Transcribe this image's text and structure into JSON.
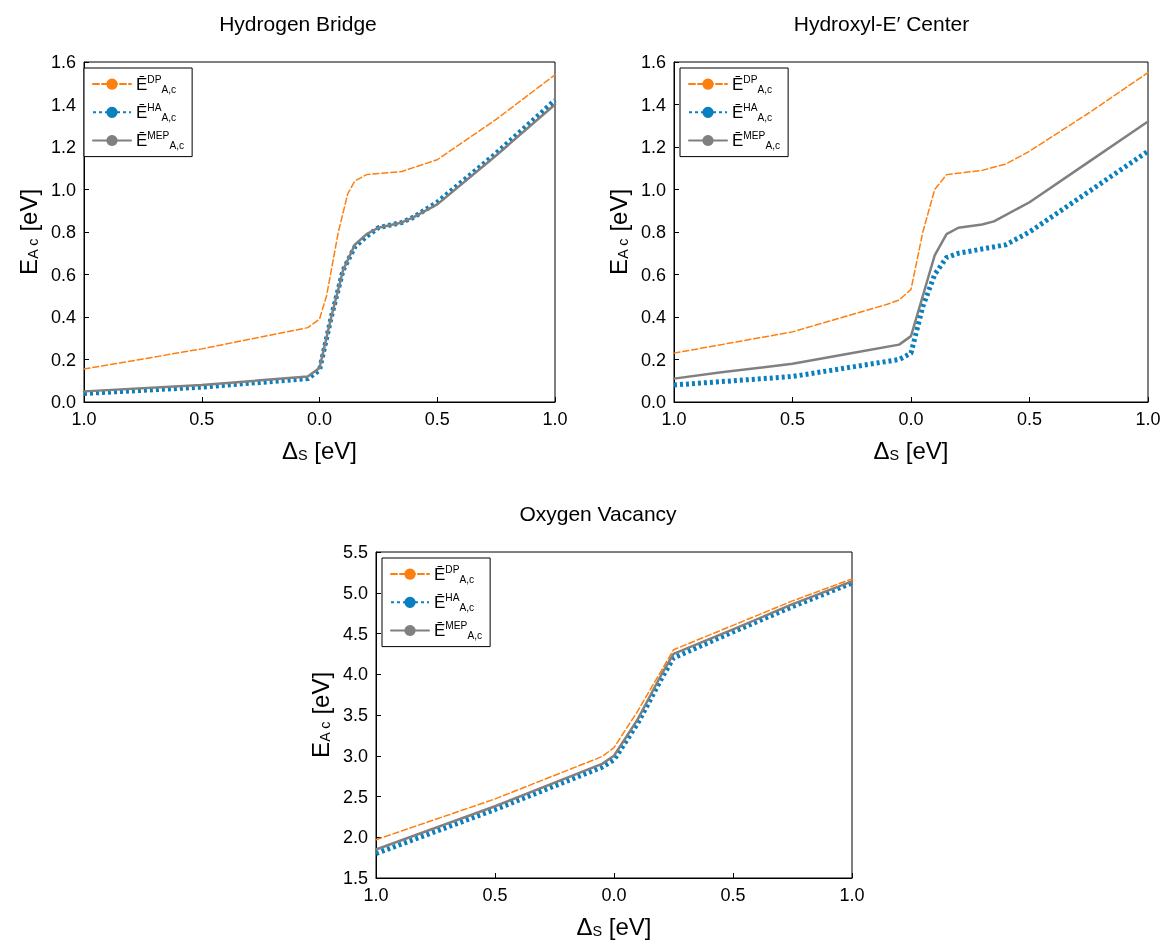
{
  "chart_data": [
    {
      "type": "line",
      "title": "Hydrogen Bridge",
      "xlabel": "Δ$_{S}$ [eV]",
      "ylabel": "E$_{A c}$ [eV]",
      "xlim": [
        -1,
        1
      ],
      "ylim": [
        0,
        1.6
      ],
      "xticks": [
        {
          "value": -1,
          "label": "1.0"
        },
        {
          "value": -0.5,
          "label": "0.5"
        },
        {
          "value": 0,
          "label": "0.0"
        },
        {
          "value": 0.5,
          "label": "0.5"
        },
        {
          "value": 1,
          "label": "1.0"
        }
      ],
      "yticks": [
        {
          "value": 0,
          "label": "0.0"
        },
        {
          "value": 0.2,
          "label": "0.2"
        },
        {
          "value": 0.4,
          "label": "0.4"
        },
        {
          "value": 0.6,
          "label": "0.6"
        },
        {
          "value": 0.8,
          "label": "0.8"
        },
        {
          "value": 1,
          "label": "1.0"
        },
        {
          "value": 1.2,
          "label": "1.2"
        },
        {
          "value": 1.4,
          "label": "1.4"
        },
        {
          "value": 1.6,
          "label": "1.6"
        }
      ],
      "grid": false,
      "legend": "top left",
      "series": [
        {
          "name": "Ē$^{DP}$$_{A,c}$",
          "color": "#ff7f0e",
          "line_style": "dashed",
          "x": [
            -1,
            -0.5,
            -0.05,
            0,
            0.03,
            0.08,
            0.12,
            0.15,
            0.2,
            0.3,
            0.35,
            0.5,
            0.75,
            1
          ],
          "values": [
            0.155,
            0.25,
            0.35,
            0.39,
            0.5,
            0.8,
            0.98,
            1.04,
            1.07,
            1.08,
            1.085,
            1.14,
            1.33,
            1.54
          ]
        },
        {
          "name": "Ē$^{HA}$$_{A,c}$",
          "color": "#0a7fc0",
          "line_style": "dotted",
          "x": [
            -1,
            -0.5,
            -0.05,
            0,
            0.05,
            0.1,
            0.15,
            0.2,
            0.25,
            0.35,
            0.4,
            0.5,
            0.75,
            1
          ],
          "values": [
            0.04,
            0.07,
            0.11,
            0.15,
            0.4,
            0.62,
            0.73,
            0.78,
            0.82,
            0.845,
            0.87,
            0.94,
            1.17,
            1.42
          ]
        },
        {
          "name": "Ē$^{MEP}$$_{A,c}$",
          "color": "#808080",
          "line_style": "solid",
          "x": [
            -1,
            -0.5,
            -0.05,
            0,
            0.05,
            0.1,
            0.15,
            0.2,
            0.25,
            0.35,
            0.4,
            0.5,
            0.75,
            1
          ],
          "values": [
            0.05,
            0.08,
            0.12,
            0.16,
            0.4,
            0.62,
            0.74,
            0.79,
            0.82,
            0.845,
            0.87,
            0.93,
            1.16,
            1.4
          ]
        }
      ]
    },
    {
      "type": "line",
      "title": "Hydroxyl-E′ Center",
      "xlabel": "Δ$_{S}$ [eV]",
      "ylabel": "E$_{A c}$ [eV]",
      "xlim": [
        -1,
        1
      ],
      "ylim": [
        0,
        1.6
      ],
      "xticks": [
        {
          "value": -1,
          "label": "1.0"
        },
        {
          "value": -0.5,
          "label": "0.5"
        },
        {
          "value": 0,
          "label": "0.0"
        },
        {
          "value": 0.5,
          "label": "0.5"
        },
        {
          "value": 1,
          "label": "1.0"
        }
      ],
      "yticks": [
        {
          "value": 0,
          "label": "0.0"
        },
        {
          "value": 0.2,
          "label": "0.2"
        },
        {
          "value": 0.4,
          "label": "0.4"
        },
        {
          "value": 0.6,
          "label": "0.6"
        },
        {
          "value": 0.8,
          "label": "0.8"
        },
        {
          "value": 1,
          "label": "1.0"
        },
        {
          "value": 1.2,
          "label": "1.2"
        },
        {
          "value": 1.4,
          "label": "1.4"
        },
        {
          "value": 1.6,
          "label": "1.6"
        }
      ],
      "grid": false,
      "legend": "top left",
      "series": [
        {
          "name": "Ē$^{DP}$$_{A,c}$",
          "color": "#ff7f0e",
          "line_style": "dashed",
          "x": [
            -1,
            -0.5,
            -0.1,
            -0.05,
            0,
            0.05,
            0.1,
            0.15,
            0.3,
            0.4,
            0.5,
            0.75,
            1
          ],
          "values": [
            0.23,
            0.33,
            0.46,
            0.48,
            0.53,
            0.8,
            1,
            1.07,
            1.09,
            1.12,
            1.18,
            1.36,
            1.55
          ]
        },
        {
          "name": "Ē$^{HA}$$_{A,c}$",
          "color": "#0a7fc0",
          "line_style": "dotted",
          "x": [
            -1,
            -0.5,
            -0.05,
            0,
            0.05,
            0.1,
            0.15,
            0.2,
            0.3,
            0.4,
            0.5,
            0.75,
            1
          ],
          "values": [
            0.08,
            0.12,
            0.2,
            0.23,
            0.45,
            0.6,
            0.68,
            0.7,
            0.72,
            0.74,
            0.8,
            0.99,
            1.18
          ]
        },
        {
          "name": "Ē$^{MEP}$$_{A,c}$",
          "color": "#808080",
          "line_style": "solid",
          "x": [
            -1,
            -0.8,
            -0.5,
            -0.2,
            -0.05,
            0,
            0.05,
            0.1,
            0.15,
            0.2,
            0.3,
            0.35,
            0.5,
            0.75,
            1
          ],
          "values": [
            0.11,
            0.14,
            0.18,
            0.24,
            0.27,
            0.31,
            0.5,
            0.69,
            0.79,
            0.82,
            0.835,
            0.85,
            0.94,
            1.13,
            1.32
          ]
        }
      ]
    },
    {
      "type": "line",
      "title": "Oxygen Vacancy",
      "xlabel": "Δ$_{S}$ [eV]",
      "ylabel": "E$_{A c}$ [eV]",
      "xlim": [
        -1,
        1
      ],
      "ylim": [
        1.5,
        5.5
      ],
      "xticks": [
        {
          "value": -1,
          "label": "1.0"
        },
        {
          "value": -0.5,
          "label": "0.5"
        },
        {
          "value": 0,
          "label": "0.0"
        },
        {
          "value": 0.5,
          "label": "0.5"
        },
        {
          "value": 1,
          "label": "1.0"
        }
      ],
      "yticks": [
        {
          "value": 1.5,
          "label": "1.5"
        },
        {
          "value": 2,
          "label": "2.0"
        },
        {
          "value": 2.5,
          "label": "2.5"
        },
        {
          "value": 3,
          "label": "3.0"
        },
        {
          "value": 3.5,
          "label": "3.5"
        },
        {
          "value": 4,
          "label": "4.0"
        },
        {
          "value": 4.5,
          "label": "4.5"
        },
        {
          "value": 5,
          "label": "5.0"
        },
        {
          "value": 5.5,
          "label": "5.5"
        }
      ],
      "grid": false,
      "legend": "top left",
      "series": [
        {
          "name": "Ē$^{DP}$$_{A,c}$",
          "color": "#ff7f0e",
          "line_style": "dashed",
          "x": [
            -1,
            -0.5,
            -0.05,
            0,
            0.1,
            0.2,
            0.25,
            0.5,
            0.75,
            1
          ],
          "values": [
            1.97,
            2.47,
            2.99,
            3.1,
            3.55,
            4.05,
            4.3,
            4.6,
            4.9,
            5.17
          ]
        },
        {
          "name": "Ē$^{HA}$$_{A,c}$",
          "color": "#0a7fc0",
          "line_style": "dotted",
          "x": [
            -1,
            -0.5,
            -0.05,
            0,
            0.1,
            0.2,
            0.25,
            0.5,
            0.75,
            1
          ],
          "values": [
            1.8,
            2.34,
            2.86,
            2.95,
            3.4,
            3.95,
            4.2,
            4.52,
            4.83,
            5.12
          ]
        },
        {
          "name": "Ē$^{MEP}$$_{A,c}$",
          "color": "#808080",
          "line_style": "solid",
          "x": [
            -1,
            -0.5,
            -0.05,
            0,
            0.1,
            0.2,
            0.25,
            0.5,
            0.75,
            1
          ],
          "values": [
            1.85,
            2.38,
            2.9,
            3,
            3.45,
            4,
            4.25,
            4.55,
            4.86,
            5.14
          ]
        }
      ]
    }
  ]
}
